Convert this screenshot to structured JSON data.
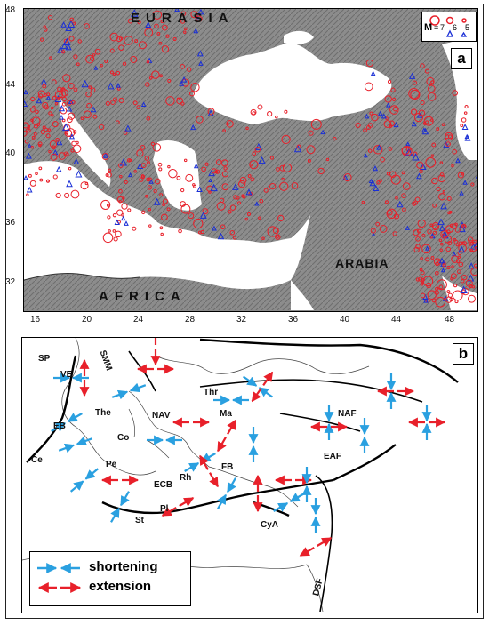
{
  "panel_a": {
    "letter": "a",
    "region_labels": {
      "north": "EURASIA",
      "south": "AFRICA",
      "east": "ARABIA"
    },
    "legend": {
      "m_label": "M",
      "m_eq": "=",
      "magnitudes": [
        "7",
        "6",
        "5"
      ]
    },
    "x_ticks": [
      "16",
      "20",
      "24",
      "28",
      "32",
      "36",
      "40",
      "44",
      "48"
    ],
    "y_ticks": [
      "48",
      "44",
      "40",
      "36",
      "32"
    ],
    "colors": {
      "circle": "#e8202a",
      "triangle": "#1a2fd6",
      "relief": "#8a8a8a",
      "sea": "#ffffff"
    }
  },
  "panel_b": {
    "letter": "b",
    "fault_labels": [
      "SP",
      "VE",
      "SMM",
      "Thr",
      "Ma",
      "NAF",
      "NAV",
      "The",
      "EB",
      "Co",
      "Ce",
      "Pe",
      "Rh",
      "FB",
      "ECB",
      "Pl",
      "St",
      "CyA",
      "EAF",
      "DSF"
    ],
    "legend": {
      "shortening": "shortening",
      "extension": "extension"
    },
    "colors": {
      "shortening": "#2aa0e0",
      "extension": "#e8202a"
    }
  }
}
